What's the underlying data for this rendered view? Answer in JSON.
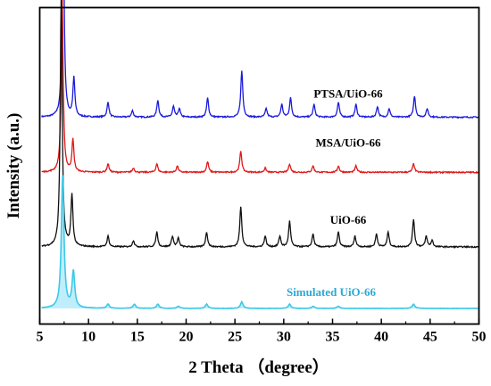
{
  "chart_data": {
    "type": "line",
    "title": "",
    "xlabel": "2 Theta （degree）",
    "ylabel": "Intensity (a.u.)",
    "xlim": [
      5,
      50
    ],
    "x_ticks": [
      5,
      10,
      15,
      20,
      25,
      30,
      35,
      40,
      45,
      50
    ],
    "y_ticks": "none",
    "grid": false,
    "legend": "inline labels above each trace",
    "series": [
      {
        "name": "PTSA/UiO-66",
        "color": "#1a1adc",
        "baseline": 0.895,
        "peaks": [
          {
            "x": 7.4,
            "y": 1.0
          },
          {
            "x": 8.5,
            "y": 0.18
          },
          {
            "x": 12.0,
            "y": 0.07
          },
          {
            "x": 14.5,
            "y": 0.03
          },
          {
            "x": 17.1,
            "y": 0.08
          },
          {
            "x": 18.7,
            "y": 0.05
          },
          {
            "x": 19.3,
            "y": 0.04
          },
          {
            "x": 22.2,
            "y": 0.09
          },
          {
            "x": 25.7,
            "y": 0.22
          },
          {
            "x": 28.2,
            "y": 0.04
          },
          {
            "x": 29.8,
            "y": 0.06
          },
          {
            "x": 30.7,
            "y": 0.09
          },
          {
            "x": 33.1,
            "y": 0.06
          },
          {
            "x": 35.6,
            "y": 0.07
          },
          {
            "x": 37.4,
            "y": 0.06
          },
          {
            "x": 39.6,
            "y": 0.05
          },
          {
            "x": 40.8,
            "y": 0.04
          },
          {
            "x": 43.4,
            "y": 0.1
          },
          {
            "x": 44.7,
            "y": 0.04
          }
        ]
      },
      {
        "name": "MSA/UiO-66",
        "color": "#e01818",
        "baseline": 0.637,
        "peaks": [
          {
            "x": 7.3,
            "y": 0.82
          },
          {
            "x": 8.4,
            "y": 0.15
          },
          {
            "x": 12.0,
            "y": 0.04
          },
          {
            "x": 14.6,
            "y": 0.02
          },
          {
            "x": 17.0,
            "y": 0.04
          },
          {
            "x": 19.1,
            "y": 0.03
          },
          {
            "x": 22.2,
            "y": 0.05
          },
          {
            "x": 25.6,
            "y": 0.1
          },
          {
            "x": 28.1,
            "y": 0.02
          },
          {
            "x": 30.6,
            "y": 0.04
          },
          {
            "x": 33.0,
            "y": 0.03
          },
          {
            "x": 35.6,
            "y": 0.03
          },
          {
            "x": 37.4,
            "y": 0.03
          },
          {
            "x": 43.3,
            "y": 0.04
          }
        ]
      },
      {
        "name": "UiO-66",
        "color": "#111111",
        "baseline": 0.288,
        "peaks": [
          {
            "x": 7.2,
            "y": 1.18
          },
          {
            "x": 8.3,
            "y": 0.24
          },
          {
            "x": 12.0,
            "y": 0.05
          },
          {
            "x": 14.6,
            "y": 0.03
          },
          {
            "x": 17.0,
            "y": 0.07
          },
          {
            "x": 18.6,
            "y": 0.05
          },
          {
            "x": 19.2,
            "y": 0.04
          },
          {
            "x": 22.1,
            "y": 0.07
          },
          {
            "x": 25.6,
            "y": 0.19
          },
          {
            "x": 28.1,
            "y": 0.05
          },
          {
            "x": 29.6,
            "y": 0.05
          },
          {
            "x": 30.6,
            "y": 0.12
          },
          {
            "x": 33.0,
            "y": 0.06
          },
          {
            "x": 35.6,
            "y": 0.07
          },
          {
            "x": 37.3,
            "y": 0.05
          },
          {
            "x": 39.5,
            "y": 0.06
          },
          {
            "x": 40.7,
            "y": 0.07
          },
          {
            "x": 43.3,
            "y": 0.13
          },
          {
            "x": 44.6,
            "y": 0.05
          },
          {
            "x": 45.2,
            "y": 0.03
          }
        ]
      },
      {
        "name": "Simulated UiO-66",
        "color": "#3ec8e8",
        "baseline": 0.0,
        "peaks": [
          {
            "x": 7.35,
            "y": 0.62
          },
          {
            "x": 8.45,
            "y": 0.17
          },
          {
            "x": 12.0,
            "y": 0.02
          },
          {
            "x": 14.7,
            "y": 0.02
          },
          {
            "x": 17.1,
            "y": 0.02
          },
          {
            "x": 19.2,
            "y": 0.01
          },
          {
            "x": 22.1,
            "y": 0.02
          },
          {
            "x": 25.7,
            "y": 0.03
          },
          {
            "x": 30.6,
            "y": 0.02
          },
          {
            "x": 33.0,
            "y": 0.01
          },
          {
            "x": 35.6,
            "y": 0.01
          },
          {
            "x": 43.3,
            "y": 0.02
          }
        ]
      }
    ]
  }
}
